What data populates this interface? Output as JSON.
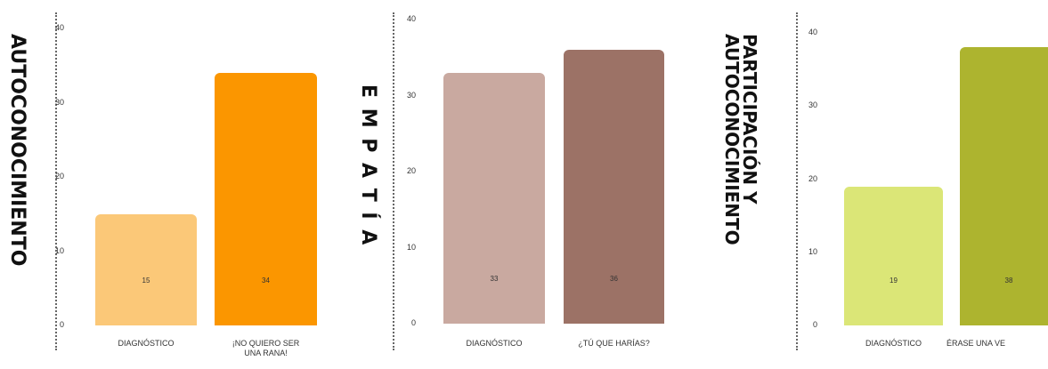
{
  "chart_data": [
    {
      "type": "bar",
      "title": "AUTOCONOCIMIENTO",
      "categories": [
        "DIAGNÓSTICO",
        "¡NO QUIERO SER UNA RANA!"
      ],
      "values": [
        15,
        34
      ],
      "value_labels": [
        "15",
        "34"
      ],
      "colors": [
        "#fbc878",
        "#fb9600"
      ],
      "ylim": [
        0,
        40
      ],
      "yticks": [
        "0",
        "10",
        "20",
        "30",
        "40"
      ]
    },
    {
      "type": "bar",
      "title": "E M P A T Í A",
      "categories": [
        "DIAGNÓSTICO",
        "¿TÚ QUE HARÍAS?"
      ],
      "values": [
        33,
        36
      ],
      "value_labels": [
        "33",
        "36"
      ],
      "colors": [
        "#c9a9a0",
        "#9c7266"
      ],
      "ylim": [
        0,
        40
      ],
      "yticks": [
        "0",
        "10",
        "20",
        "30",
        "40"
      ]
    },
    {
      "type": "bar",
      "title": "PARTICIPACIÓN Y\nAUTOCONOCIMIENTO",
      "categories": [
        "DIAGNÓSTICO",
        "ÉRASE UNA VE"
      ],
      "values": [
        19,
        38
      ],
      "value_labels": [
        "19",
        "38"
      ],
      "colors": [
        "#dbe677",
        "#adb42f"
      ],
      "ylim": [
        0,
        40
      ],
      "yticks": [
        "0",
        "10",
        "20",
        "30",
        "40"
      ]
    }
  ]
}
